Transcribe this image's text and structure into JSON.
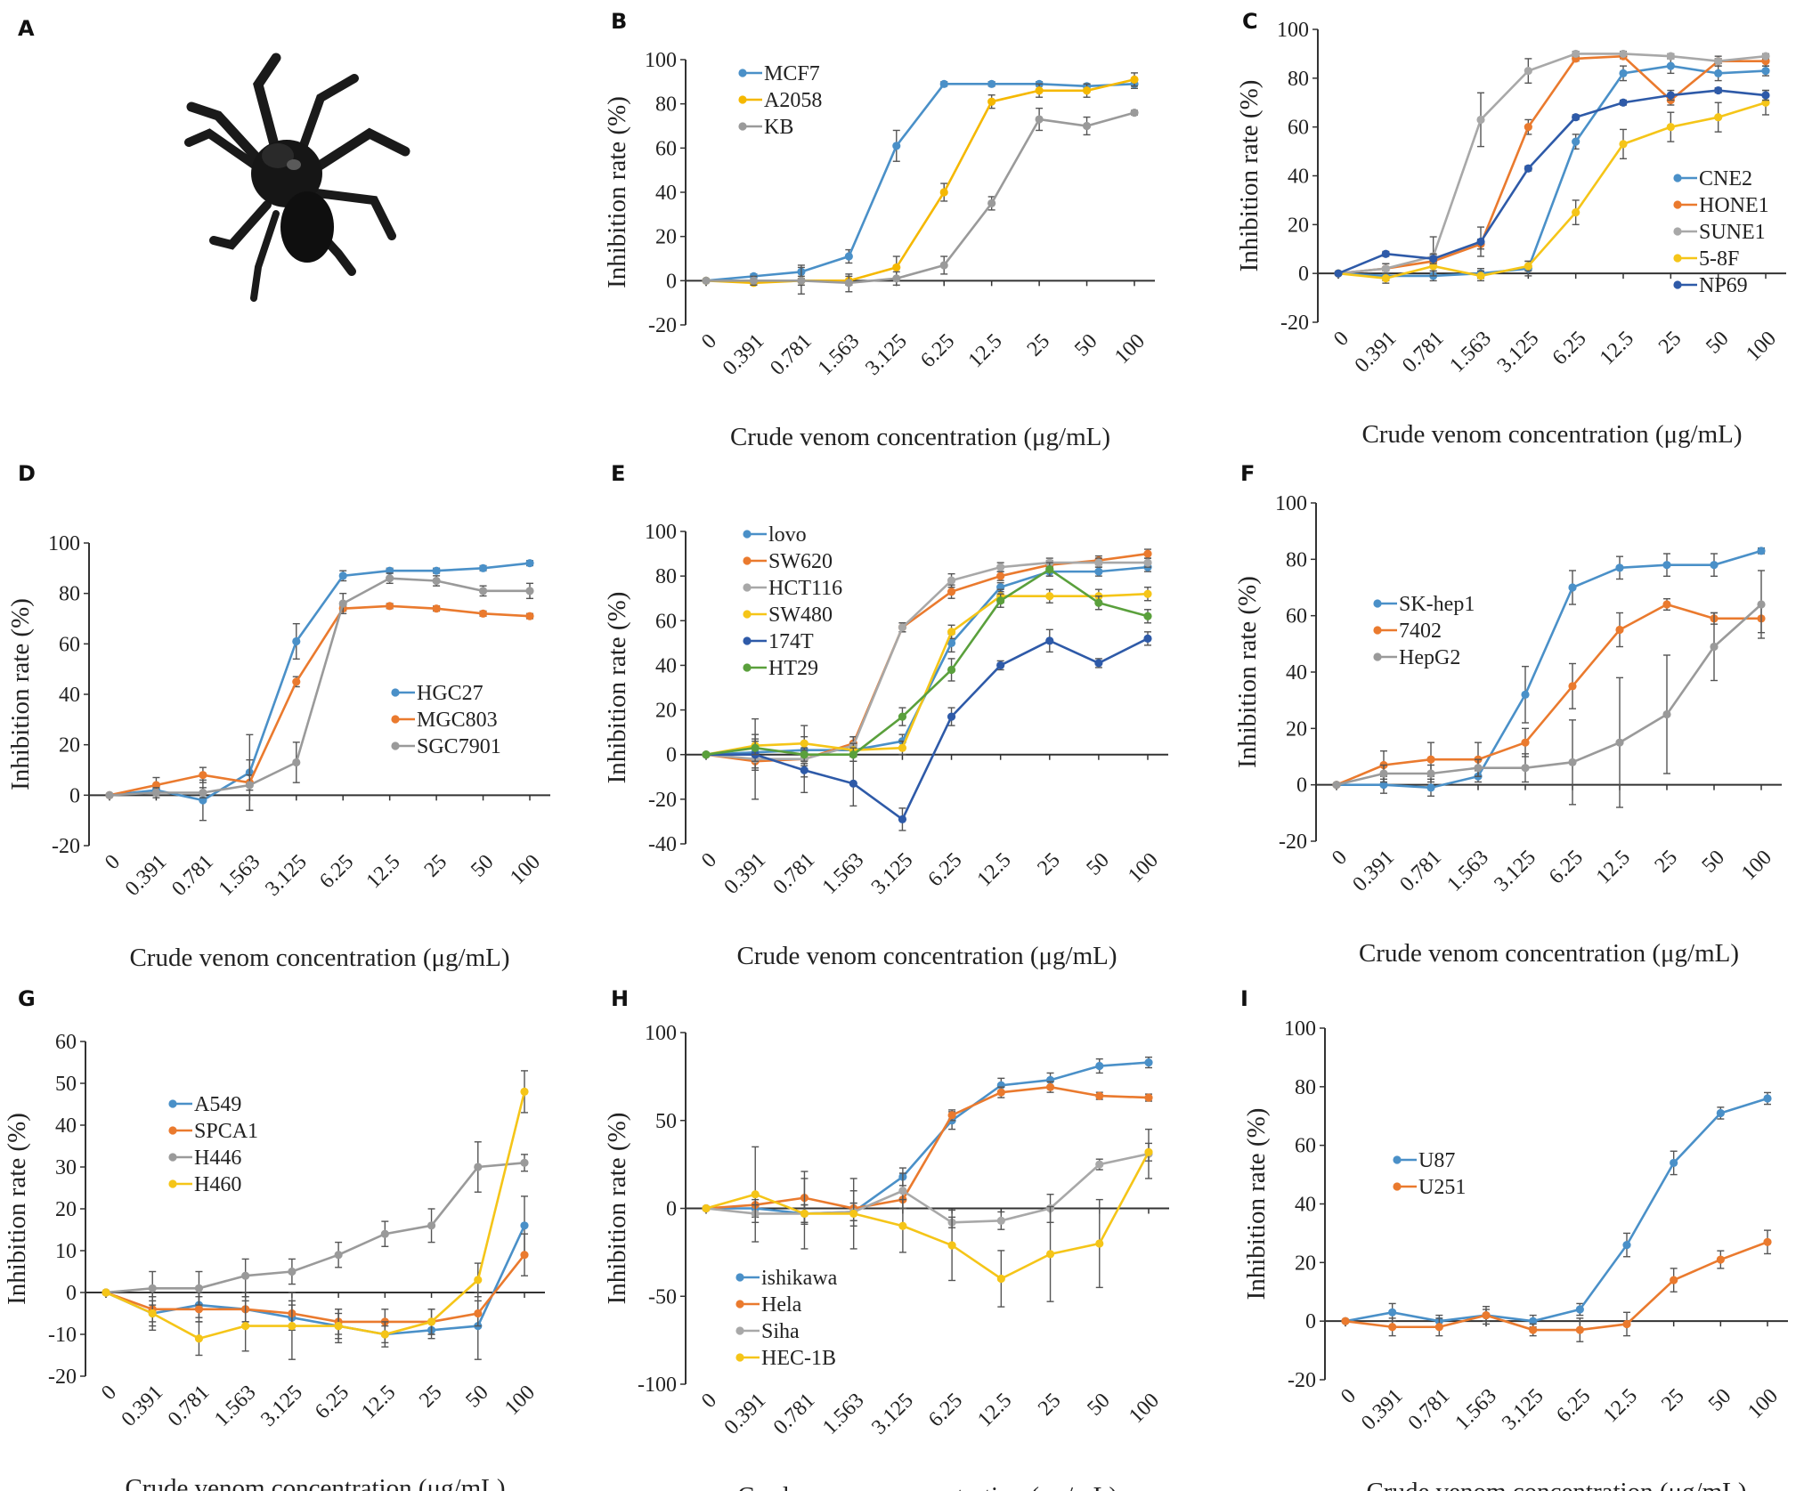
{
  "image_panel": {
    "letter": "A",
    "alt": "spider-image"
  },
  "chart_data": [
    {
      "type": "line",
      "panel": "B",
      "x": [
        "0",
        "0.391",
        "0.781",
        "1.563",
        "3.125",
        "6.25",
        "12.5",
        "25",
        "50",
        "100"
      ],
      "xlabel": "Crude venom concentration (μg/mL)",
      "ylabel": "Inhibition rate (%)",
      "ylim": [
        -20,
        100
      ],
      "ystep": 20,
      "legend_position": "top-left",
      "grid": false,
      "series": [
        {
          "name": "MCF7",
          "color": "#4a90c8",
          "values": [
            0,
            2,
            4,
            11,
            61,
            89,
            89,
            89,
            88,
            89
          ],
          "errors": [
            0,
            1,
            3,
            3,
            7,
            1,
            1,
            1,
            1,
            2
          ]
        },
        {
          "name": "A2058",
          "color": "#f5b800",
          "values": [
            0,
            -1,
            0,
            0,
            6,
            40,
            81,
            86,
            86,
            91
          ],
          "errors": [
            0,
            1,
            2,
            2,
            5,
            4,
            3,
            3,
            3,
            3
          ]
        },
        {
          "name": "KB",
          "color": "#9a9a9a",
          "values": [
            0,
            0,
            0,
            -1,
            1,
            7,
            35,
            73,
            70,
            76
          ],
          "errors": [
            0,
            2,
            6,
            4,
            3,
            4,
            3,
            5,
            4,
            1
          ]
        }
      ]
    },
    {
      "type": "line",
      "panel": "C",
      "x": [
        "0",
        "0.391",
        "0.781",
        "1.563",
        "3.125",
        "6.25",
        "12.5",
        "25",
        "50",
        "100"
      ],
      "xlabel": "Crude venom concentration (μg/mL)",
      "ylabel": "Inhibition rate (%)",
      "ylim": [
        -20,
        100
      ],
      "ystep": 20,
      "legend_position": "center-right",
      "grid": false,
      "series": [
        {
          "name": "CNE2",
          "color": "#4a90c8",
          "values": [
            0,
            -1,
            -1,
            0,
            2,
            54,
            82,
            85,
            82,
            83
          ],
          "errors": [
            0,
            2,
            2,
            2,
            3,
            3,
            3,
            3,
            3,
            2
          ]
        },
        {
          "name": "HONE1",
          "color": "#ea7a2e",
          "values": [
            0,
            2,
            5,
            12,
            60,
            88,
            89,
            71,
            87,
            87
          ],
          "errors": [
            0,
            2,
            2,
            2,
            3,
            1,
            1,
            2,
            2,
            2
          ]
        },
        {
          "name": "SUNE1",
          "color": "#a8a8a8",
          "values": [
            0,
            2,
            7,
            63,
            83,
            90,
            90,
            89,
            87,
            89
          ],
          "errors": [
            0,
            2,
            8,
            11,
            5,
            1,
            1,
            1,
            1,
            1
          ]
        },
        {
          "name": "5-8F",
          "color": "#f5c518",
          "values": [
            0,
            -2,
            3,
            -1,
            3,
            25,
            53,
            60,
            64,
            70
          ],
          "errors": [
            0,
            2,
            2,
            2,
            2,
            5,
            6,
            6,
            6,
            5
          ]
        },
        {
          "name": "NP69",
          "color": "#2e5aa8",
          "values": [
            0,
            8,
            6,
            13,
            43,
            64,
            70,
            73,
            75,
            73
          ],
          "errors": [
            0,
            1,
            2,
            6,
            1,
            1,
            1,
            2,
            1,
            2
          ]
        }
      ]
    },
    {
      "type": "line",
      "panel": "D",
      "x": [
        "0",
        "0.391",
        "0.781",
        "1.563",
        "3.125",
        "6.25",
        "12.5",
        "25",
        "50",
        "100"
      ],
      "xlabel": "Crude venom concentration (μg/mL)",
      "ylabel": "Inhibition rate (%)",
      "ylim": [
        -20,
        100
      ],
      "ystep": 20,
      "legend_position": "center-right",
      "grid": false,
      "series": [
        {
          "name": "HGC27",
          "color": "#4a90c8",
          "values": [
            0,
            2,
            -2,
            9,
            61,
            87,
            89,
            89,
            90,
            92
          ],
          "errors": [
            0,
            2,
            8,
            15,
            7,
            2,
            1,
            1,
            1,
            1
          ]
        },
        {
          "name": "MGC803",
          "color": "#ea7a2e",
          "values": [
            0,
            4,
            8,
            5,
            45,
            74,
            75,
            74,
            72,
            71
          ],
          "errors": [
            0,
            3,
            3,
            3,
            2,
            1,
            1,
            1,
            1,
            1
          ]
        },
        {
          "name": "SGC7901",
          "color": "#9a9a9a",
          "values": [
            0,
            1,
            1,
            4,
            13,
            76,
            86,
            85,
            81,
            81
          ],
          "errors": [
            0,
            2,
            2,
            10,
            8,
            4,
            2,
            2,
            2,
            3
          ]
        }
      ]
    },
    {
      "type": "line",
      "panel": "E",
      "x": [
        "0",
        "0.391",
        "0.781",
        "1.563",
        "3.125",
        "6.25",
        "12.5",
        "25",
        "50",
        "100"
      ],
      "xlabel": "Crude venom concentration (μg/mL)",
      "ylabel": "Inhibition rate (%)",
      "ylim": [
        -40,
        100
      ],
      "ystep": 20,
      "legend_position": "top-left",
      "grid": false,
      "series": [
        {
          "name": "lovo",
          "color": "#4a90c8",
          "values": [
            0,
            1,
            2,
            2,
            6,
            50,
            75,
            82,
            82,
            84
          ],
          "errors": [
            0,
            8,
            3,
            3,
            3,
            4,
            2,
            2,
            2,
            2
          ]
        },
        {
          "name": "SW620",
          "color": "#ea7a2e",
          "values": [
            0,
            -3,
            -2,
            5,
            57,
            73,
            80,
            85,
            87,
            90
          ],
          "errors": [
            0,
            3,
            3,
            3,
            2,
            3,
            2,
            2,
            2,
            2
          ]
        },
        {
          "name": "HCT116",
          "color": "#a8a8a8",
          "values": [
            0,
            -2,
            -2,
            4,
            57,
            78,
            84,
            86,
            86,
            86
          ],
          "errors": [
            0,
            18,
            15,
            4,
            2,
            3,
            2,
            2,
            2,
            2
          ]
        },
        {
          "name": "SW480",
          "color": "#f5c518",
          "values": [
            0,
            4,
            5,
            2,
            3,
            55,
            71,
            71,
            71,
            72
          ],
          "errors": [
            0,
            3,
            3,
            3,
            3,
            3,
            3,
            3,
            3,
            3
          ]
        },
        {
          "name": "174T",
          "color": "#2e5aa8",
          "values": [
            0,
            0,
            -7,
            -13,
            -29,
            17,
            40,
            51,
            41,
            52
          ],
          "errors": [
            0,
            3,
            3,
            10,
            5,
            4,
            2,
            5,
            2,
            3
          ]
        },
        {
          "name": "HT29",
          "color": "#5aa03c",
          "values": [
            0,
            3,
            0,
            0,
            17,
            38,
            69,
            83,
            68,
            62
          ],
          "errors": [
            0,
            3,
            3,
            3,
            4,
            5,
            3,
            3,
            3,
            3
          ]
        }
      ]
    },
    {
      "type": "line",
      "panel": "F",
      "x": [
        "0",
        "0.391",
        "0.781",
        "1.563",
        "3.125",
        "6.25",
        "12.5",
        "25",
        "50",
        "100"
      ],
      "xlabel": "Crude venom concentration (μg/mL)",
      "ylabel": "Inhibition rate (%)",
      "ylim": [
        -20,
        100
      ],
      "ystep": 20,
      "legend_position": "center-left",
      "grid": false,
      "series": [
        {
          "name": "SK-hep1",
          "color": "#4a90c8",
          "values": [
            0,
            0,
            -1,
            3,
            32,
            70,
            77,
            78,
            78,
            83
          ],
          "errors": [
            0,
            3,
            3,
            2,
            10,
            6,
            4,
            4,
            4,
            1
          ]
        },
        {
          "name": "7402",
          "color": "#ea7a2e",
          "values": [
            0,
            7,
            9,
            9,
            15,
            35,
            55,
            64,
            59,
            59
          ],
          "errors": [
            0,
            5,
            6,
            6,
            5,
            8,
            6,
            2,
            2,
            5
          ]
        },
        {
          "name": "HepG2",
          "color": "#9a9a9a",
          "values": [
            0,
            4,
            4,
            6,
            6,
            8,
            15,
            25,
            49,
            64
          ],
          "errors": [
            0,
            3,
            3,
            3,
            5,
            15,
            23,
            21,
            12,
            12
          ]
        }
      ]
    },
    {
      "type": "line",
      "panel": "G",
      "x": [
        "0",
        "0.391",
        "0.781",
        "1.563",
        "3.125",
        "6.25",
        "12.5",
        "25",
        "50",
        "100"
      ],
      "xlabel": "Crude venom concentration (μg/mL)",
      "ylabel": "Inhibition rate (%)",
      "ylim": [
        -20,
        60
      ],
      "ystep": 10,
      "legend_position": "top-left",
      "grid": false,
      "series": [
        {
          "name": "A549",
          "color": "#4a90c8",
          "values": [
            0,
            -5,
            -3,
            -4,
            -6,
            -8,
            -10,
            -9,
            -8,
            16
          ],
          "errors": [
            0,
            3,
            3,
            3,
            3,
            3,
            2,
            2,
            8,
            7
          ]
        },
        {
          "name": "SPCA1",
          "color": "#ea7a2e",
          "values": [
            0,
            -4,
            -4,
            -4,
            -5,
            -7,
            -7,
            -7,
            -5,
            9
          ],
          "errors": [
            0,
            3,
            3,
            3,
            3,
            3,
            3,
            3,
            3,
            5
          ]
        },
        {
          "name": "H446",
          "color": "#9a9a9a",
          "values": [
            0,
            1,
            1,
            4,
            5,
            9,
            14,
            16,
            30,
            31
          ],
          "errors": [
            0,
            4,
            4,
            4,
            3,
            3,
            3,
            4,
            6,
            2
          ]
        },
        {
          "name": "H460",
          "color": "#f5c518",
          "values": [
            0,
            -5,
            -11,
            -8,
            -8,
            -8,
            -10,
            -7,
            3,
            48
          ],
          "errors": [
            0,
            4,
            4,
            6,
            8,
            4,
            3,
            3,
            4,
            5
          ]
        }
      ]
    },
    {
      "type": "line",
      "panel": "H",
      "x": [
        "0",
        "0.391",
        "0.781",
        "1.563",
        "3.125",
        "6.25",
        "12.5",
        "25",
        "50",
        "100"
      ],
      "xlabel": "Crude venom concentration (μg/mL)",
      "ylabel": "Inhibition rate (%)",
      "ylim": [
        -100,
        100
      ],
      "ystep": 50,
      "legend_position": "bottom-left",
      "grid": false,
      "series": [
        {
          "name": "ishikawa",
          "color": "#4a90c8",
          "values": [
            0,
            0,
            -3,
            -2,
            18,
            50,
            70,
            73,
            81,
            83
          ],
          "errors": [
            0,
            5,
            5,
            5,
            5,
            5,
            4,
            4,
            4,
            3
          ]
        },
        {
          "name": "Hela",
          "color": "#ea7a2e",
          "values": [
            0,
            2,
            6,
            0,
            5,
            53,
            66,
            69,
            64,
            63
          ],
          "errors": [
            0,
            5,
            15,
            10,
            5,
            3,
            3,
            3,
            2,
            2
          ]
        },
        {
          "name": "Siha",
          "color": "#a8a8a8",
          "values": [
            0,
            -3,
            -3,
            -2,
            10,
            -8,
            -7,
            0,
            25,
            31
          ],
          "errors": [
            0,
            5,
            5,
            5,
            10,
            3,
            5,
            8,
            3,
            14
          ]
        },
        {
          "name": "HEC-1B",
          "color": "#f5c518",
          "values": [
            0,
            8,
            -3,
            -3,
            -10,
            -21,
            -40,
            -26,
            -20,
            32
          ],
          "errors": [
            0,
            27,
            20,
            20,
            15,
            20,
            16,
            27,
            25,
            5
          ]
        }
      ]
    },
    {
      "type": "line",
      "panel": "I",
      "x": [
        "0",
        "0.391",
        "0.781",
        "1.563",
        "3.125",
        "6.25",
        "12.5",
        "25",
        "50",
        "100"
      ],
      "xlabel": "Crude venom concentration (μg/mL)",
      "ylabel": "Inhibition rate (%)",
      "ylim": [
        -20,
        100
      ],
      "ystep": 20,
      "legend_position": "center-left",
      "grid": false,
      "series": [
        {
          "name": "U87",
          "color": "#4a90c8",
          "values": [
            0,
            3,
            0,
            2,
            0,
            4,
            26,
            54,
            71,
            76
          ],
          "errors": [
            0,
            3,
            2,
            2,
            2,
            2,
            4,
            4,
            2,
            2
          ]
        },
        {
          "name": "U251",
          "color": "#ea7a2e",
          "values": [
            0,
            -2,
            -2,
            2,
            -3,
            -3,
            -1,
            14,
            21,
            27
          ],
          "errors": [
            0,
            3,
            3,
            3,
            2,
            4,
            4,
            4,
            3,
            4
          ]
        }
      ]
    }
  ]
}
